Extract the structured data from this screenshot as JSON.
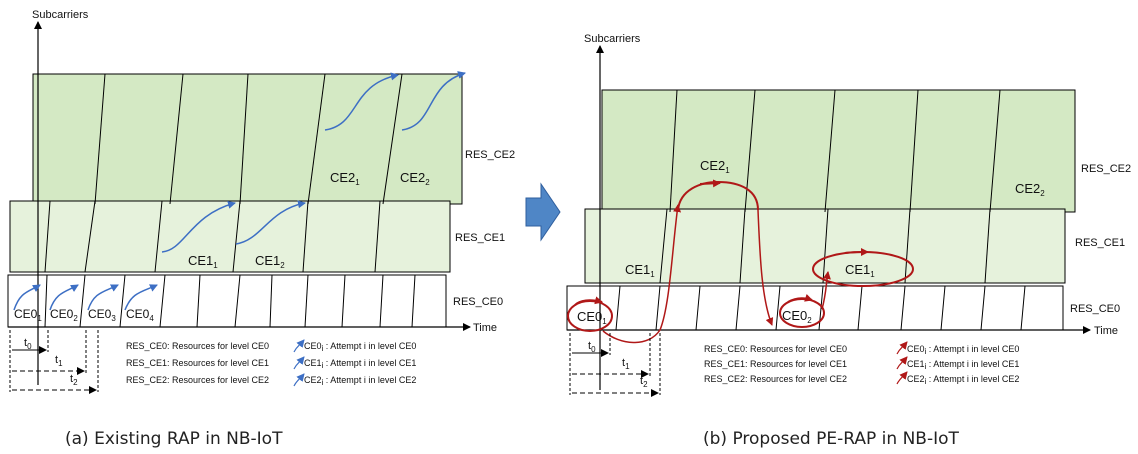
{
  "left": {
    "y_axis_label": "Subcarriers",
    "x_axis_label": "Time",
    "band_labels": [
      "RES_CE2",
      "RES_CE1",
      "RES_CE0"
    ],
    "ce0_cells": [
      {
        "base": "CE0",
        "sub": "1"
      },
      {
        "base": "CE0",
        "sub": "2"
      },
      {
        "base": "CE0",
        "sub": "3"
      },
      {
        "base": "CE0",
        "sub": "4"
      }
    ],
    "ce1_cells": [
      {
        "base": "CE1",
        "sub": "1"
      },
      {
        "base": "CE1",
        "sub": "2"
      }
    ],
    "ce2_cells": [
      {
        "base": "CE2",
        "sub": "1"
      },
      {
        "base": "CE2",
        "sub": "2"
      }
    ],
    "timing": [
      {
        "base": "t",
        "sub": "0"
      },
      {
        "base": "t",
        "sub": "1"
      },
      {
        "base": "t",
        "sub": "2"
      }
    ],
    "legend_resources": [
      "RES_CE0: Resources for level CE0",
      "RES_CE1: Resources for level CE1",
      "RES_CE2: Resources for level CE2"
    ],
    "legend_attempts": [
      {
        "base": "CE0",
        "sub": "i",
        "text": " : Attempt i in level CE0"
      },
      {
        "base": "CE1",
        "sub": "i",
        "text": " : Attempt i in level CE1"
      },
      {
        "base": "CE2",
        "sub": "i",
        "text": " : Attempt i in level CE2"
      }
    ],
    "caption": "(a) Existing RAP in NB-IoT"
  },
  "right": {
    "y_axis_label": "Subcarriers",
    "x_axis_label": "Time",
    "band_labels": [
      "RES_CE2",
      "RES_CE1",
      "RES_CE0"
    ],
    "ce0_cells": [
      {
        "base": "CE0",
        "sub": "1"
      },
      {
        "base": "CE0",
        "sub": "2"
      }
    ],
    "ce1_cells": [
      {
        "base": "CE1",
        "sub": "1"
      },
      {
        "base": "CE1",
        "sub": "1"
      }
    ],
    "ce2_cells": [
      {
        "base": "CE2",
        "sub": "1"
      },
      {
        "base": "CE2",
        "sub": "2"
      }
    ],
    "timing": [
      {
        "base": "t",
        "sub": "0"
      },
      {
        "base": "t",
        "sub": "1"
      },
      {
        "base": "t",
        "sub": "2"
      }
    ],
    "legend_resources": [
      "RES_CE0: Resources for level CE0",
      "RES_CE1: Resources for level CE1",
      "RES_CE2: Resources for level CE2"
    ],
    "legend_attempts": [
      {
        "base": "CE0",
        "sub": "i",
        "text": " : Attempt i in level CE0"
      },
      {
        "base": "CE1",
        "sub": "i",
        "text": " : Attempt i in level CE1"
      },
      {
        "base": "CE2",
        "sub": "i",
        "text": " : Attempt i in level CE2"
      }
    ],
    "caption": "(b) Proposed PE-RAP  in NB-IoT"
  },
  "colors": {
    "ce2_fill": "#d4e9c4",
    "ce1_fill": "#e6f2dc",
    "ce0_fill": "#ffffff",
    "blue_arrow": "#3d6fc4",
    "red_arrow": "#b01818",
    "transition_arrow": "#4f86c6"
  }
}
